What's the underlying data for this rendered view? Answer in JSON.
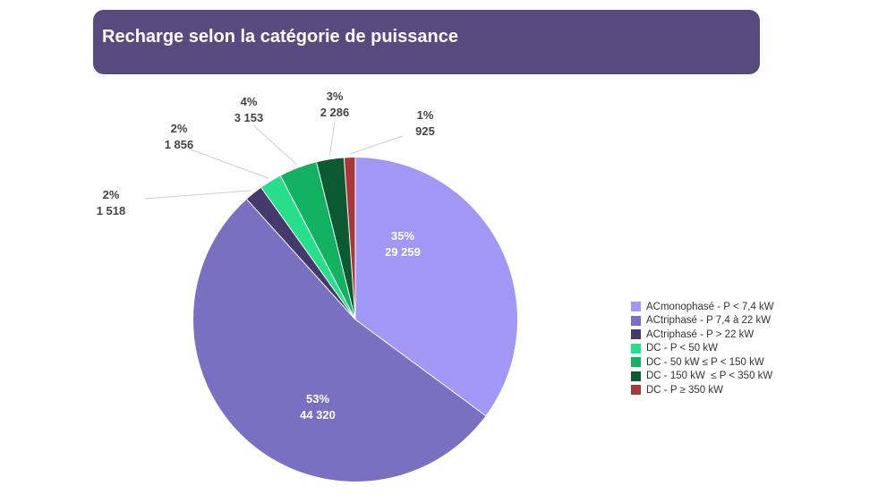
{
  "header": {
    "title": "Recharge selon la catégorie de puissance"
  },
  "chart_data": {
    "type": "pie",
    "title": "Recharge selon la catégorie de puissance",
    "start_angle": "12 o'clock, clockwise",
    "legend_position": "right",
    "slices": [
      {
        "label": "ACmonophasé - P < 7,4 kW",
        "value": 29259,
        "percent_label": "35%",
        "value_label": "29 259",
        "color": "#a197f4"
      },
      {
        "label": "ACtriphasé - P 7,4 à 22 kW",
        "value": 44320,
        "percent_label": "53%",
        "value_label": "44 320",
        "color": "#7b6fc2"
      },
      {
        "label": "ACtriphasé - P > 22 kW",
        "value": 1518,
        "percent_label": "2%",
        "value_label": "1 518",
        "color": "#45396c"
      },
      {
        "label": "DC - P < 50 kW",
        "value": 1856,
        "percent_label": "2%",
        "value_label": "1 856",
        "color": "#27df8a"
      },
      {
        "label": "DC - 50 kW ≤ P < 150 kW",
        "value": 3153,
        "percent_label": "4%",
        "value_label": "3 153",
        "color": "#13b260"
      },
      {
        "label": "DC - 150 kW  ≤ P < 350 kW",
        "value": 2286,
        "percent_label": "3%",
        "value_label": "2 286",
        "color": "#0c5a32"
      },
      {
        "label": "DC - P ≥ 350 kW",
        "value": 925,
        "percent_label": "1%",
        "value_label": "925",
        "color": "#a8373a"
      }
    ]
  }
}
